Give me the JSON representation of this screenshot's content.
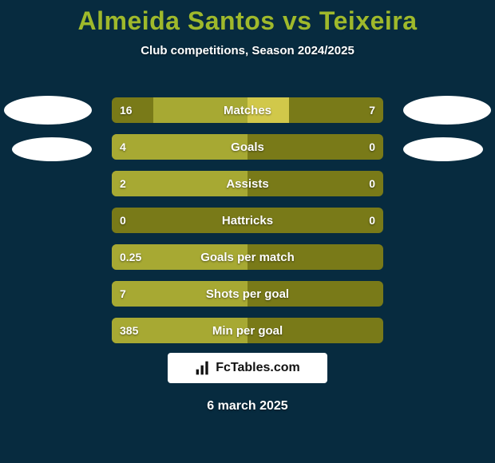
{
  "background_color": "#072b3f",
  "title": {
    "text": "Almeida Santos vs Teixeira",
    "color": "#9fb92b",
    "fontsize": 32
  },
  "subtitle": {
    "text": "Club competitions, Season 2024/2025",
    "color": "#ffffff",
    "fontsize": 15
  },
  "avatars": {
    "fill": "#ffffff"
  },
  "bars": {
    "track_color": "#797a18",
    "left_color": "#a7a933",
    "right_color": "#d1c84a",
    "text_color": "#ffffff",
    "rows": [
      {
        "label": "Matches",
        "left_val": "16",
        "right_val": "7",
        "left_frac": 0.696,
        "right_frac": 0.304
      },
      {
        "label": "Goals",
        "left_val": "4",
        "right_val": "0",
        "left_frac": 1.0,
        "right_frac": 0.0
      },
      {
        "label": "Assists",
        "left_val": "2",
        "right_val": "0",
        "left_frac": 1.0,
        "right_frac": 0.0
      },
      {
        "label": "Hattricks",
        "left_val": "0",
        "right_val": "0",
        "left_frac": 0.0,
        "right_frac": 0.0
      },
      {
        "label": "Goals per match",
        "left_val": "0.25",
        "right_val": "",
        "left_frac": 1.0,
        "right_frac": 0.0
      },
      {
        "label": "Shots per goal",
        "left_val": "7",
        "right_val": "",
        "left_frac": 1.0,
        "right_frac": 0.0
      },
      {
        "label": "Min per goal",
        "left_val": "385",
        "right_val": "",
        "left_frac": 1.0,
        "right_frac": 0.0
      }
    ]
  },
  "logo": {
    "box_bg": "#ffffff",
    "text": "FcTables.com",
    "text_color": "#111111",
    "icon_color": "#111111"
  },
  "date": {
    "text": "6 march 2025",
    "color": "#ffffff"
  }
}
